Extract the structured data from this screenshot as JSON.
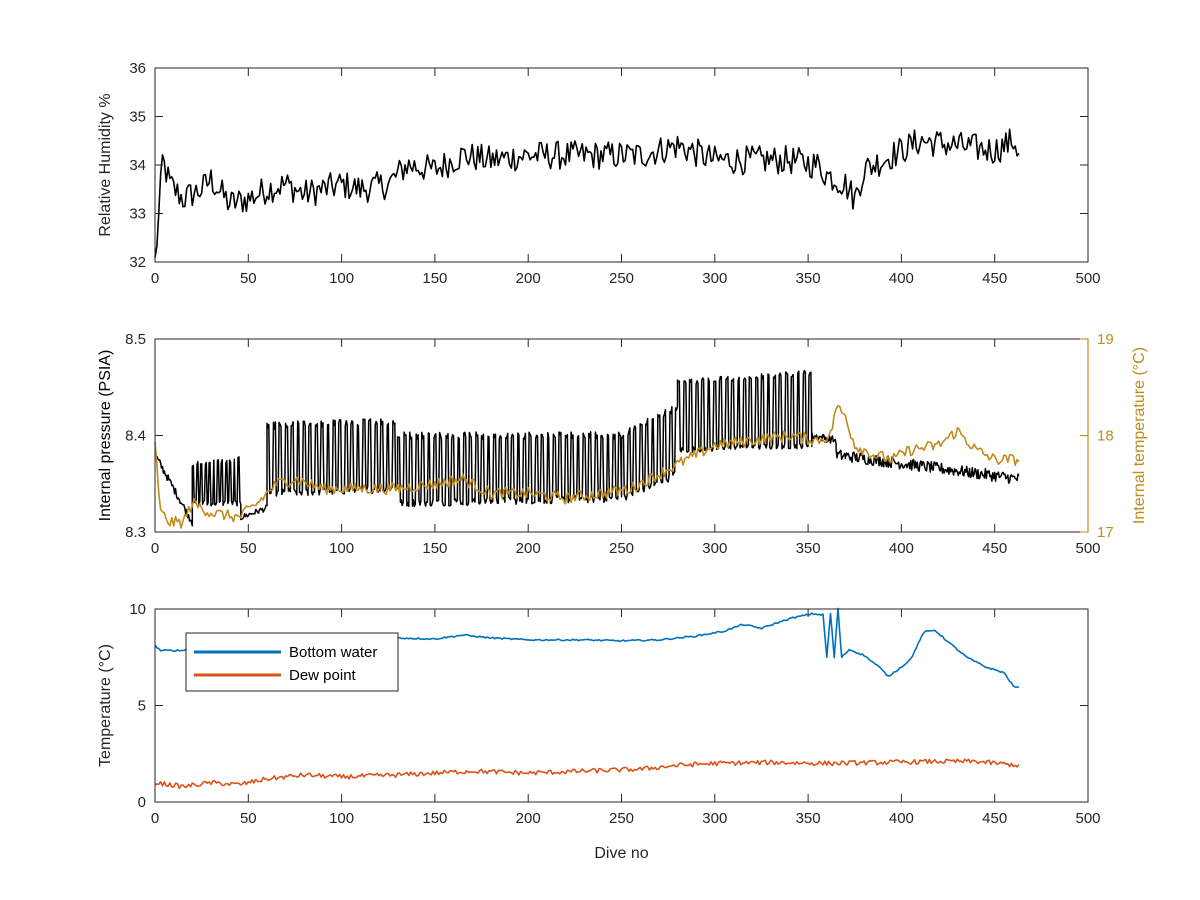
{
  "chart_data": [
    {
      "type": "line",
      "xlabel": "",
      "ylabel": "Relative Humidity %",
      "xlim": [
        0,
        500
      ],
      "ylim": [
        32,
        36
      ],
      "xticks": [
        0,
        50,
        100,
        150,
        200,
        250,
        300,
        350,
        400,
        450,
        500
      ],
      "yticks": [
        32,
        33,
        34,
        35,
        36
      ],
      "grid": false,
      "series": [
        {
          "color": "#000000",
          "noise": 0.3,
          "knots": [
            [
              0,
              32.0
            ],
            [
              2,
              32.9
            ],
            [
              4,
              34.1
            ],
            [
              8,
              33.6
            ],
            [
              15,
              33.3
            ],
            [
              25,
              33.5
            ],
            [
              30,
              33.7
            ],
            [
              40,
              33.2
            ],
            [
              50,
              33.3
            ],
            [
              60,
              33.5
            ],
            [
              70,
              33.6
            ],
            [
              80,
              33.4
            ],
            [
              100,
              33.6
            ],
            [
              110,
              33.5
            ],
            [
              125,
              33.6
            ],
            [
              135,
              34.0
            ],
            [
              150,
              33.9
            ],
            [
              165,
              34.2
            ],
            [
              180,
              34.1
            ],
            [
              200,
              34.2
            ],
            [
              220,
              34.2
            ],
            [
              240,
              34.2
            ],
            [
              260,
              34.2
            ],
            [
              280,
              34.4
            ],
            [
              300,
              34.1
            ],
            [
              320,
              34.1
            ],
            [
              340,
              34.1
            ],
            [
              355,
              34.0
            ],
            [
              360,
              33.8
            ],
            [
              370,
              33.6
            ],
            [
              375,
              33.3
            ],
            [
              380,
              33.9
            ],
            [
              400,
              34.3
            ],
            [
              410,
              34.5
            ],
            [
              430,
              34.4
            ],
            [
              450,
              34.3
            ],
            [
              455,
              34.4
            ],
            [
              460,
              34.5
            ],
            [
              463,
              34.3
            ]
          ]
        }
      ]
    },
    {
      "type": "line",
      "xlabel": "",
      "ylabel": "Internal pressure (PSIA)",
      "ylabel_right": "Internal temperature (°C)",
      "xlim": [
        0,
        500
      ],
      "ylim": [
        8.3,
        8.5
      ],
      "ylim_right": [
        17,
        19
      ],
      "xticks": [
        0,
        50,
        100,
        150,
        200,
        250,
        300,
        350,
        400,
        450,
        500
      ],
      "yticks": [
        8.3,
        8.4,
        8.5
      ],
      "yticks_right": [
        17,
        18,
        19
      ],
      "grid": false,
      "pressure_segments": [
        {
          "x": [
            0,
            20
          ],
          "base": [
            8.38,
            8.31
          ],
          "top": [
            8.38,
            8.31
          ],
          "noise": 0.004
        },
        {
          "x": [
            20,
            46
          ],
          "base": [
            8.33,
            8.33
          ],
          "top": [
            8.37,
            8.375
          ],
          "noise": 0.003,
          "period": 2.2
        },
        {
          "x": [
            46,
            60
          ],
          "base": [
            8.315,
            8.325
          ],
          "top": [
            8.315,
            8.33
          ],
          "noise": 0.003
        },
        {
          "x": [
            60,
            130
          ],
          "base": [
            8.34,
            8.345
          ],
          "top": [
            8.41,
            8.415
          ],
          "noise": 0.004,
          "period": 3.2
        },
        {
          "x": [
            130,
            250
          ],
          "base": [
            8.33,
            8.335
          ],
          "top": [
            8.4,
            8.4
          ],
          "noise": 0.004,
          "period": 3.2
        },
        {
          "x": [
            250,
            280
          ],
          "base": [
            8.335,
            8.36
          ],
          "top": [
            8.4,
            8.43
          ],
          "noise": 0.004,
          "period": 3.2
        },
        {
          "x": [
            280,
            352
          ],
          "base": [
            8.385,
            8.39
          ],
          "top": [
            8.455,
            8.465
          ],
          "noise": 0.003,
          "period": 3.2
        },
        {
          "x": [
            352,
            365
          ],
          "base": [
            8.4,
            8.395
          ],
          "top": [
            8.4,
            8.395
          ],
          "noise": 0.004
        },
        {
          "x": [
            365,
            463
          ],
          "base": [
            8.38,
            8.355
          ],
          "top": [
            8.38,
            8.355
          ],
          "noise": 0.006
        }
      ],
      "series": [
        {
          "axis": "right",
          "color": "#c18a1a",
          "noise": 0.06,
          "knots": [
            [
              0,
              17.9
            ],
            [
              3,
              17.2
            ],
            [
              8,
              17.1
            ],
            [
              15,
              17.1
            ],
            [
              20,
              17.3
            ],
            [
              30,
              17.2
            ],
            [
              45,
              17.15
            ],
            [
              55,
              17.3
            ],
            [
              65,
              17.5
            ],
            [
              75,
              17.55
            ],
            [
              90,
              17.45
            ],
            [
              110,
              17.45
            ],
            [
              130,
              17.45
            ],
            [
              150,
              17.5
            ],
            [
              165,
              17.55
            ],
            [
              180,
              17.4
            ],
            [
              200,
              17.4
            ],
            [
              220,
              17.35
            ],
            [
              240,
              17.4
            ],
            [
              255,
              17.45
            ],
            [
              270,
              17.6
            ],
            [
              285,
              17.75
            ],
            [
              300,
              17.9
            ],
            [
              320,
              17.95
            ],
            [
              340,
              18.0
            ],
            [
              355,
              17.95
            ],
            [
              362,
              18.0
            ],
            [
              365,
              18.3
            ],
            [
              370,
              18.2
            ],
            [
              375,
              17.9
            ],
            [
              385,
              17.8
            ],
            [
              395,
              17.75
            ],
            [
              405,
              17.85
            ],
            [
              420,
              17.9
            ],
            [
              430,
              18.05
            ],
            [
              440,
              17.85
            ],
            [
              450,
              17.75
            ],
            [
              463,
              17.75
            ]
          ]
        }
      ]
    },
    {
      "type": "line",
      "xlabel": "Dive no",
      "ylabel": "Temperature (°C)",
      "xlim": [
        0,
        500
      ],
      "ylim": [
        0,
        10
      ],
      "xticks": [
        0,
        50,
        100,
        150,
        200,
        250,
        300,
        350,
        400,
        450,
        500
      ],
      "yticks": [
        0,
        5,
        10
      ],
      "grid": false,
      "legend_placement": "top-left",
      "series": [
        {
          "name": "Bottom water",
          "color": "#0072bd",
          "noise": 0.04,
          "knots": [
            [
              0,
              8.1
            ],
            [
              3,
              7.85
            ],
            [
              15,
              7.85
            ],
            [
              25,
              8.4
            ],
            [
              50,
              8.5
            ],
            [
              70,
              8.6
            ],
            [
              90,
              8.6
            ],
            [
              110,
              8.6
            ],
            [
              130,
              8.5
            ],
            [
              150,
              8.45
            ],
            [
              165,
              8.65
            ],
            [
              180,
              8.5
            ],
            [
              200,
              8.4
            ],
            [
              230,
              8.4
            ],
            [
              250,
              8.35
            ],
            [
              270,
              8.4
            ],
            [
              290,
              8.6
            ],
            [
              305,
              8.85
            ],
            [
              315,
              9.2
            ],
            [
              325,
              9.0
            ],
            [
              340,
              9.5
            ],
            [
              352,
              9.75
            ],
            [
              358,
              9.7
            ],
            [
              360,
              7.5
            ],
            [
              362,
              9.75
            ],
            [
              364,
              7.5
            ],
            [
              366,
              10.0
            ],
            [
              368,
              7.5
            ],
            [
              372,
              7.9
            ],
            [
              380,
              7.6
            ],
            [
              388,
              7.0
            ],
            [
              393,
              6.5
            ],
            [
              400,
              7.0
            ],
            [
              405,
              7.4
            ],
            [
              412,
              8.8
            ],
            [
              418,
              8.9
            ],
            [
              425,
              8.3
            ],
            [
              435,
              7.5
            ],
            [
              445,
              7.0
            ],
            [
              455,
              6.7
            ],
            [
              460,
              6.0
            ],
            [
              463,
              5.9
            ]
          ]
        },
        {
          "name": "Dew point",
          "color": "#d95319",
          "noise": 0.12,
          "knots": [
            [
              0,
              1.0
            ],
            [
              15,
              0.8
            ],
            [
              30,
              1.0
            ],
            [
              45,
              0.9
            ],
            [
              60,
              1.2
            ],
            [
              80,
              1.4
            ],
            [
              100,
              1.3
            ],
            [
              130,
              1.4
            ],
            [
              150,
              1.5
            ],
            [
              170,
              1.6
            ],
            [
              200,
              1.5
            ],
            [
              230,
              1.6
            ],
            [
              260,
              1.7
            ],
            [
              280,
              1.9
            ],
            [
              300,
              2.0
            ],
            [
              330,
              2.05
            ],
            [
              360,
              2.0
            ],
            [
              390,
              2.05
            ],
            [
              420,
              2.1
            ],
            [
              440,
              2.1
            ],
            [
              463,
              1.9
            ]
          ]
        }
      ]
    }
  ]
}
